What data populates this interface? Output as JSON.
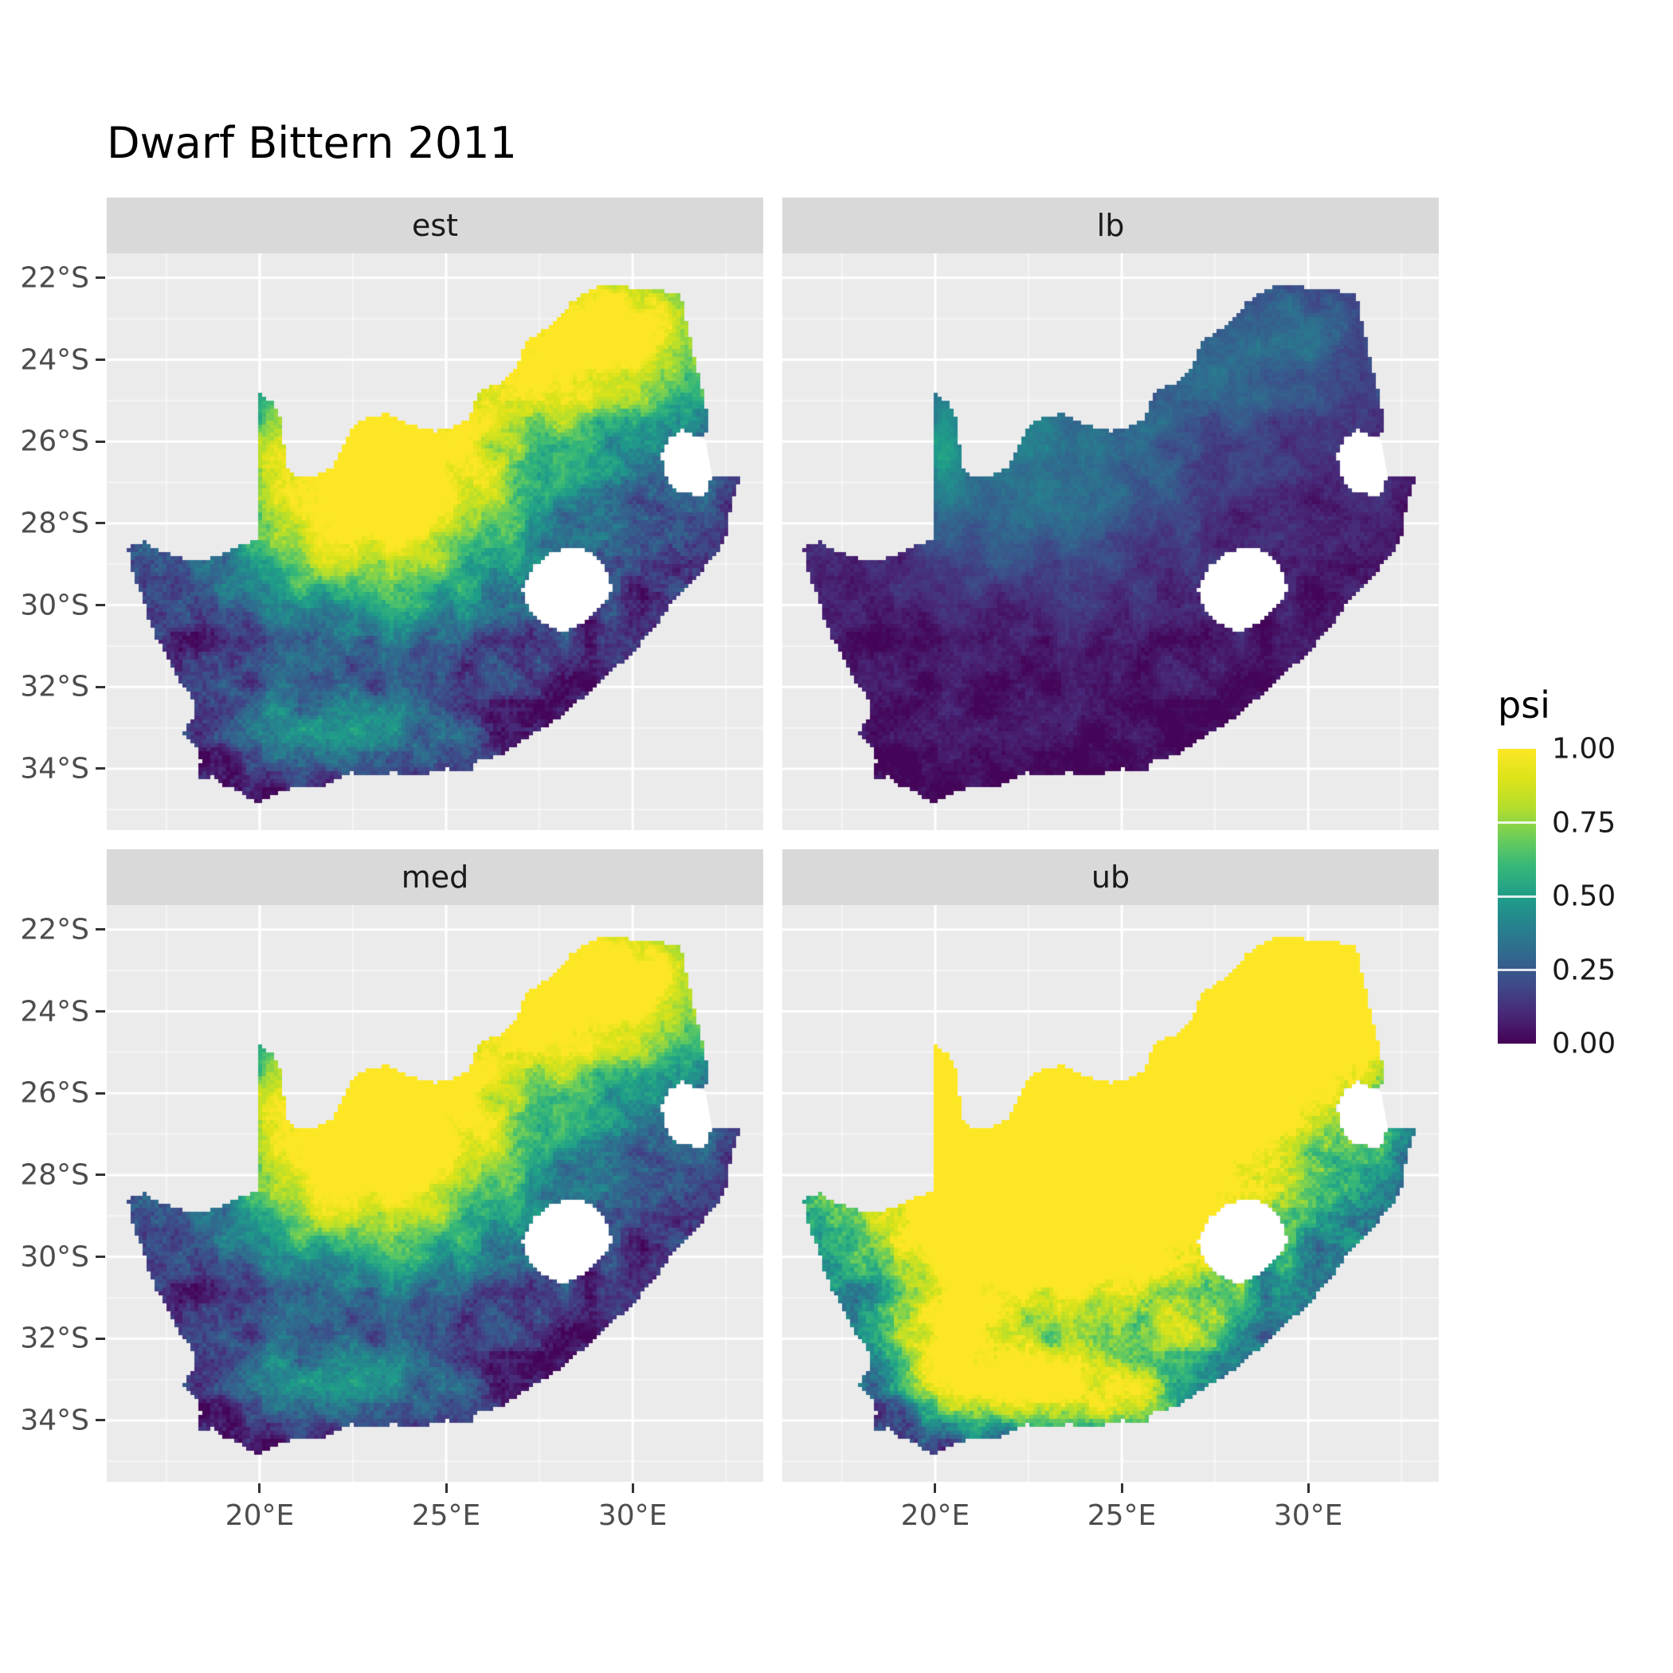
{
  "chart_data": {
    "type": "heatmap",
    "title": "Dwarf Bittern 2011",
    "legend": {
      "title": "psi",
      "breaks": [
        1.0,
        0.75,
        0.5,
        0.25,
        0.0
      ],
      "labels": [
        "1.00",
        "0.75",
        "0.50",
        "0.25",
        "0.00"
      ],
      "range": [
        0,
        1
      ]
    },
    "x_axis": {
      "breaks": [
        20,
        25,
        30
      ],
      "labels": [
        "20°E",
        "25°E",
        "30°E"
      ],
      "minor_breaks": [
        17.5,
        22.5,
        27.5,
        32.5
      ],
      "range": [
        15.9,
        33.5
      ]
    },
    "y_axis": {
      "breaks": [
        -22,
        -24,
        -26,
        -28,
        -30,
        -32,
        -34
      ],
      "labels": [
        "22°S",
        "24°S",
        "26°S",
        "28°S",
        "30°S",
        "32°S",
        "34°S"
      ],
      "minor_breaks": [
        -23,
        -25,
        -27,
        -29,
        -31,
        -33,
        -35
      ],
      "range": [
        -35.5,
        -21.4
      ]
    },
    "facets": [
      {
        "label": "est",
        "field": {
          "base": 0.04,
          "noise": 1.0,
          "cap": 1.0,
          "blobs": [
            [
              22.8,
              -27.0,
              2.8,
              2.3,
              0.95
            ],
            [
              29.4,
              -23.2,
              2.7,
              1.5,
              0.9
            ],
            [
              26.0,
              -25.5,
              5.0,
              3.0,
              0.35
            ],
            [
              21.2,
              -33.0,
              1.7,
              0.9,
              0.3
            ],
            [
              24.3,
              -33.4,
              1.5,
              0.8,
              0.22
            ]
          ]
        }
      },
      {
        "label": "lb",
        "field": {
          "base": 0.03,
          "noise": 0.5,
          "cap": 1.0,
          "blobs": [
            [
              22.5,
              -26.5,
              2.8,
              2.2,
              0.26
            ],
            [
              29.4,
              -23.3,
              2.7,
              1.5,
              0.22
            ],
            [
              26.0,
              -25.5,
              5.0,
              3.0,
              0.1
            ],
            [
              20.15,
              -25.8,
              0.5,
              1.5,
              0.22
            ]
          ]
        }
      },
      {
        "label": "med",
        "field": {
          "base": 0.04,
          "noise": 1.0,
          "cap": 1.0,
          "blobs": [
            [
              22.8,
              -27.0,
              2.8,
              2.3,
              1.0
            ],
            [
              29.4,
              -23.2,
              2.7,
              1.5,
              0.95
            ],
            [
              26.0,
              -25.5,
              5.0,
              3.0,
              0.37
            ],
            [
              21.2,
              -33.0,
              1.7,
              0.9,
              0.3
            ],
            [
              24.3,
              -33.4,
              1.5,
              0.8,
              0.22
            ]
          ]
        }
      },
      {
        "label": "ub",
        "field": {
          "base": 0.07,
          "noise": 1.25,
          "cap": 1.0,
          "blobs": [
            [
              22.8,
              -27.5,
              3.6,
              2.8,
              1.5
            ],
            [
              29.6,
              -23.3,
              2.5,
              1.6,
              1.35
            ],
            [
              26.2,
              -25.8,
              5.0,
              3.3,
              0.7
            ],
            [
              20.3,
              -32.4,
              1.1,
              1.2,
              0.65
            ],
            [
              22.4,
              -33.2,
              1.3,
              0.8,
              0.55
            ],
            [
              24.9,
              -33.5,
              1.4,
              0.7,
              0.65
            ],
            [
              27.0,
              -32.0,
              1.2,
              0.8,
              0.3
            ]
          ]
        }
      }
    ],
    "colors": {
      "panel_bg": "#EBEBEB",
      "strip_bg": "#D9D9D9",
      "strip_text": "#1A1A1A",
      "grid_major": "#FFFFFF",
      "grid_minor": "rgba(255,255,255,0.55)",
      "axis_text": "#4D4D4D",
      "tick": "#333333",
      "na_region": "#FFFFFF",
      "title": "#000000",
      "viridis_stops": [
        [
          0,
          "#440154"
        ],
        [
          0.1,
          "#482878"
        ],
        [
          0.2,
          "#3E4A89"
        ],
        [
          0.3,
          "#31688E"
        ],
        [
          0.4,
          "#26828E"
        ],
        [
          0.5,
          "#1F9E89"
        ],
        [
          0.6,
          "#35B779"
        ],
        [
          0.7,
          "#6DCD59"
        ],
        [
          0.8,
          "#B4DE2C"
        ],
        [
          0.9,
          "#DCE319"
        ],
        [
          1,
          "#FDE725"
        ]
      ]
    },
    "geometry": {
      "outline": [
        [
          16.45,
          -28.58
        ],
        [
          16.9,
          -28.45
        ],
        [
          17.4,
          -28.7
        ],
        [
          18.0,
          -28.87
        ],
        [
          18.55,
          -28.9
        ],
        [
          19.0,
          -28.75
        ],
        [
          19.5,
          -28.5
        ],
        [
          19.98,
          -28.42
        ],
        [
          19.98,
          -24.77
        ],
        [
          20.35,
          -25.05
        ],
        [
          20.6,
          -25.45
        ],
        [
          20.65,
          -26.0
        ],
        [
          20.68,
          -26.45
        ],
        [
          20.85,
          -26.8
        ],
        [
          21.4,
          -26.85
        ],
        [
          21.9,
          -26.67
        ],
        [
          22.2,
          -26.15
        ],
        [
          22.55,
          -25.6
        ],
        [
          22.85,
          -25.45
        ],
        [
          23.45,
          -25.3
        ],
        [
          24.0,
          -25.6
        ],
        [
          24.75,
          -25.75
        ],
        [
          25.35,
          -25.6
        ],
        [
          25.6,
          -25.45
        ],
        [
          25.9,
          -24.75
        ],
        [
          26.4,
          -24.6
        ],
        [
          26.85,
          -24.25
        ],
        [
          27.1,
          -23.6
        ],
        [
          27.95,
          -23.05
        ],
        [
          28.35,
          -22.6
        ],
        [
          29.05,
          -22.2
        ],
        [
          29.45,
          -22.15
        ],
        [
          30.0,
          -22.25
        ],
        [
          30.65,
          -22.3
        ],
        [
          31.3,
          -22.4
        ],
        [
          31.55,
          -23.5
        ],
        [
          31.7,
          -24.2
        ],
        [
          31.95,
          -24.9
        ],
        [
          32.0,
          -25.6
        ],
        [
          31.95,
          -25.95
        ],
        [
          31.3,
          -25.72
        ],
        [
          30.95,
          -25.95
        ],
        [
          30.78,
          -26.3
        ],
        [
          30.85,
          -26.8
        ],
        [
          31.15,
          -27.2
        ],
        [
          31.6,
          -27.3
        ],
        [
          31.95,
          -27.32
        ],
        [
          32.13,
          -26.85
        ],
        [
          32.9,
          -26.86
        ],
        [
          32.65,
          -27.5
        ],
        [
          32.55,
          -28.2
        ],
        [
          32.35,
          -28.6
        ],
        [
          32.0,
          -29.0
        ],
        [
          31.7,
          -29.35
        ],
        [
          31.1,
          -29.9
        ],
        [
          30.75,
          -30.35
        ],
        [
          30.3,
          -30.85
        ],
        [
          29.9,
          -31.25
        ],
        [
          29.35,
          -31.7
        ],
        [
          28.8,
          -32.15
        ],
        [
          28.2,
          -32.65
        ],
        [
          27.6,
          -33.0
        ],
        [
          27.0,
          -33.35
        ],
        [
          26.45,
          -33.7
        ],
        [
          25.9,
          -33.75
        ],
        [
          25.65,
          -34.05
        ],
        [
          25.0,
          -34.0
        ],
        [
          24.3,
          -34.15
        ],
        [
          23.6,
          -34.1
        ],
        [
          23.0,
          -34.15
        ],
        [
          22.4,
          -34.1
        ],
        [
          21.8,
          -34.4
        ],
        [
          21.0,
          -34.45
        ],
        [
          20.45,
          -34.6
        ],
        [
          20.0,
          -34.85
        ],
        [
          19.5,
          -34.6
        ],
        [
          19.3,
          -34.45
        ],
        [
          18.95,
          -34.4
        ],
        [
          18.8,
          -34.15
        ],
        [
          18.45,
          -34.3
        ],
        [
          18.3,
          -34.0
        ],
        [
          18.45,
          -33.85
        ],
        [
          18.3,
          -33.5
        ],
        [
          17.95,
          -33.15
        ],
        [
          18.2,
          -32.75
        ],
        [
          18.3,
          -32.55
        ],
        [
          18.1,
          -32.1
        ],
        [
          17.85,
          -31.85
        ],
        [
          17.55,
          -31.3
        ],
        [
          17.25,
          -30.85
        ],
        [
          17.0,
          -30.3
        ],
        [
          16.85,
          -29.8
        ],
        [
          16.6,
          -29.2
        ]
      ],
      "lesotho_hole": [
        [
          27.05,
          -29.65
        ],
        [
          27.3,
          -29.1
        ],
        [
          27.75,
          -28.75
        ],
        [
          28.2,
          -28.6
        ],
        [
          28.65,
          -28.6
        ],
        [
          29.1,
          -28.9
        ],
        [
          29.35,
          -29.25
        ],
        [
          29.45,
          -29.6
        ],
        [
          29.2,
          -30.0
        ],
        [
          28.7,
          -30.45
        ],
        [
          28.1,
          -30.65
        ],
        [
          27.55,
          -30.4
        ],
        [
          27.2,
          -30.05
        ]
      ],
      "eswatini_notch": [
        [
          31.95,
          -25.95
        ],
        [
          31.3,
          -25.72
        ],
        [
          30.95,
          -25.95
        ],
        [
          30.78,
          -26.3
        ],
        [
          30.85,
          -26.8
        ],
        [
          31.15,
          -27.2
        ],
        [
          31.6,
          -27.3
        ],
        [
          31.95,
          -27.32
        ],
        [
          32.13,
          -26.85
        ]
      ]
    }
  }
}
